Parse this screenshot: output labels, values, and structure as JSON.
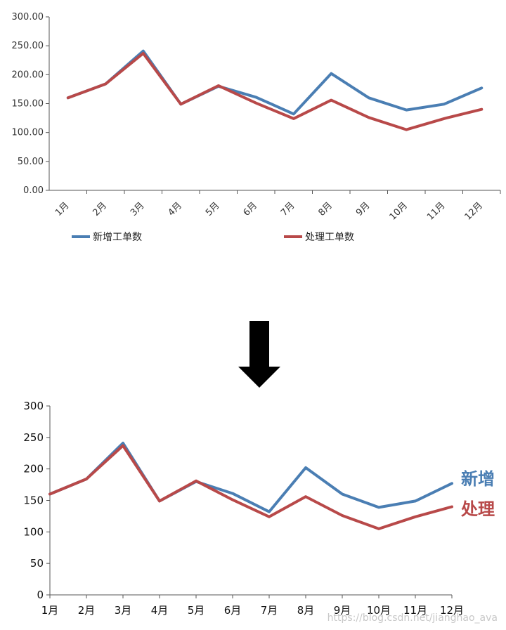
{
  "colors": {
    "new": "#4a7eb3",
    "processed": "#b84949",
    "axis": "#555555",
    "arrow": "#000000"
  },
  "chart_data": [
    {
      "type": "line",
      "categories": [
        "1月",
        "2月",
        "3月",
        "4月",
        "5月",
        "6月",
        "7月",
        "8月",
        "9月",
        "10月",
        "11月",
        "12月"
      ],
      "series": [
        {
          "name": "新增工单数",
          "values": [
            160,
            184,
            241,
            149,
            180,
            161,
            132,
            202,
            160,
            139,
            149,
            177
          ]
        },
        {
          "name": "处理工单数",
          "values": [
            160,
            184,
            237,
            149,
            181,
            151,
            124,
            156,
            126,
            105,
            124,
            140
          ]
        }
      ],
      "ylim": [
        0,
        300
      ],
      "yticks": [
        "0.00",
        "50.00",
        "100.00",
        "150.00",
        "200.00",
        "250.00",
        "300.00"
      ],
      "legend": "bottom",
      "grid": false
    },
    {
      "type": "line",
      "categories": [
        "1月",
        "2月",
        "3月",
        "4月",
        "5月",
        "6月",
        "7月",
        "8月",
        "9月",
        "10月",
        "11月",
        "12月"
      ],
      "series": [
        {
          "name": "新增",
          "values": [
            160,
            184,
            241,
            149,
            180,
            161,
            132,
            202,
            160,
            139,
            149,
            177
          ]
        },
        {
          "name": "处理",
          "values": [
            160,
            184,
            237,
            149,
            181,
            151,
            124,
            156,
            126,
            105,
            124,
            140
          ]
        }
      ],
      "ylim": [
        0,
        300
      ],
      "yticks": [
        "0",
        "50",
        "100",
        "150",
        "200",
        "250",
        "300"
      ],
      "legend": "line-end labels",
      "grid": false
    }
  ],
  "watermark": "https://blog.csdn.net/jianghao_ava"
}
